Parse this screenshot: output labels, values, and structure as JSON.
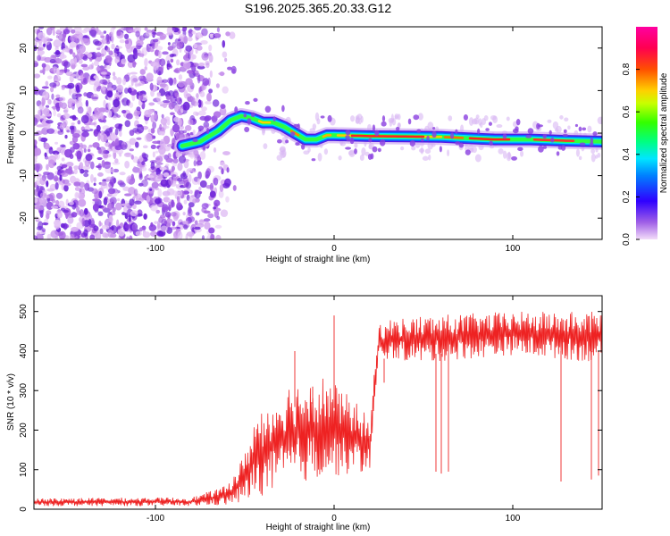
{
  "title": "S196.2025.365.20.33.G12",
  "chart_data": [
    {
      "type": "heatmap",
      "xlabel": "Height of straight line (km)",
      "ylabel": "Frequency (Hz)",
      "xlim": [
        -168,
        150
      ],
      "ylim": [
        -25,
        25
      ],
      "xticks": [
        -100,
        0,
        100
      ],
      "yticks": [
        -20,
        -10,
        0,
        10,
        20
      ],
      "colorbar": {
        "label": "Normalized spectral amplitude",
        "range": [
          0,
          1
        ],
        "ticks": [
          0.0,
          0.2,
          0.4,
          0.6,
          0.8
        ]
      },
      "ridge": [
        {
          "x": -85,
          "y": -3.0
        },
        {
          "x": -75,
          "y": -2.0
        },
        {
          "x": -65,
          "y": 0.5
        },
        {
          "x": -58,
          "y": 3.0
        },
        {
          "x": -52,
          "y": 4.0
        },
        {
          "x": -46,
          "y": 3.5
        },
        {
          "x": -40,
          "y": 2.5
        },
        {
          "x": -34,
          "y": 2.5
        },
        {
          "x": -28,
          "y": 1.5
        },
        {
          "x": -22,
          "y": 0.0
        },
        {
          "x": -16,
          "y": -1.5
        },
        {
          "x": -10,
          "y": -1.5
        },
        {
          "x": -4,
          "y": -0.5
        },
        {
          "x": 0,
          "y": -0.5
        },
        {
          "x": 20,
          "y": -0.7
        },
        {
          "x": 40,
          "y": -0.8
        },
        {
          "x": 60,
          "y": -0.9
        },
        {
          "x": 75,
          "y": -1.2
        },
        {
          "x": 90,
          "y": -1.5
        },
        {
          "x": 110,
          "y": -1.5
        },
        {
          "x": 130,
          "y": -1.8
        },
        {
          "x": 150,
          "y": -2.0
        }
      ]
    },
    {
      "type": "line",
      "xlabel": "Height of straight line (km)",
      "ylabel": "SNR (10 * v/v)",
      "xlim": [
        -168,
        150
      ],
      "ylim": [
        0,
        540
      ],
      "xticks": [
        -100,
        0,
        100
      ],
      "yticks": [
        0,
        100,
        200,
        300,
        400,
        500
      ],
      "series": [
        {
          "name": "SNR",
          "color": "#ee2222",
          "envelope": {
            "x": [
              -168,
              -80,
              -60,
              -50,
              -45,
              -35,
              -25,
              -15,
              -5,
              5,
              15,
              20,
              25,
              30,
              50,
              100,
              150
            ],
            "low": [
              8,
              8,
              10,
              15,
              30,
              40,
              60,
              70,
              80,
              85,
              90,
              100,
              370,
              380,
              370,
              390,
              370
            ],
            "high": [
              28,
              30,
              60,
              140,
              230,
              280,
              320,
              330,
              340,
              300,
              260,
              220,
              470,
              480,
              490,
              500,
              500
            ]
          },
          "spikes": [
            {
              "x": -22,
              "y": 400
            },
            {
              "x": -12,
              "y": 310
            },
            {
              "x": 0,
              "y": 490
            },
            {
              "x": 28,
              "y": 320
            },
            {
              "x": 57,
              "y": 95
            },
            {
              "x": 60,
              "y": 90
            },
            {
              "x": 64,
              "y": 95
            },
            {
              "x": 127,
              "y": 70
            },
            {
              "x": 144,
              "y": 75
            },
            {
              "x": 148,
              "y": 85
            }
          ]
        }
      ]
    }
  ],
  "colors": {
    "axis": "#000000",
    "line": "#ee2222"
  }
}
